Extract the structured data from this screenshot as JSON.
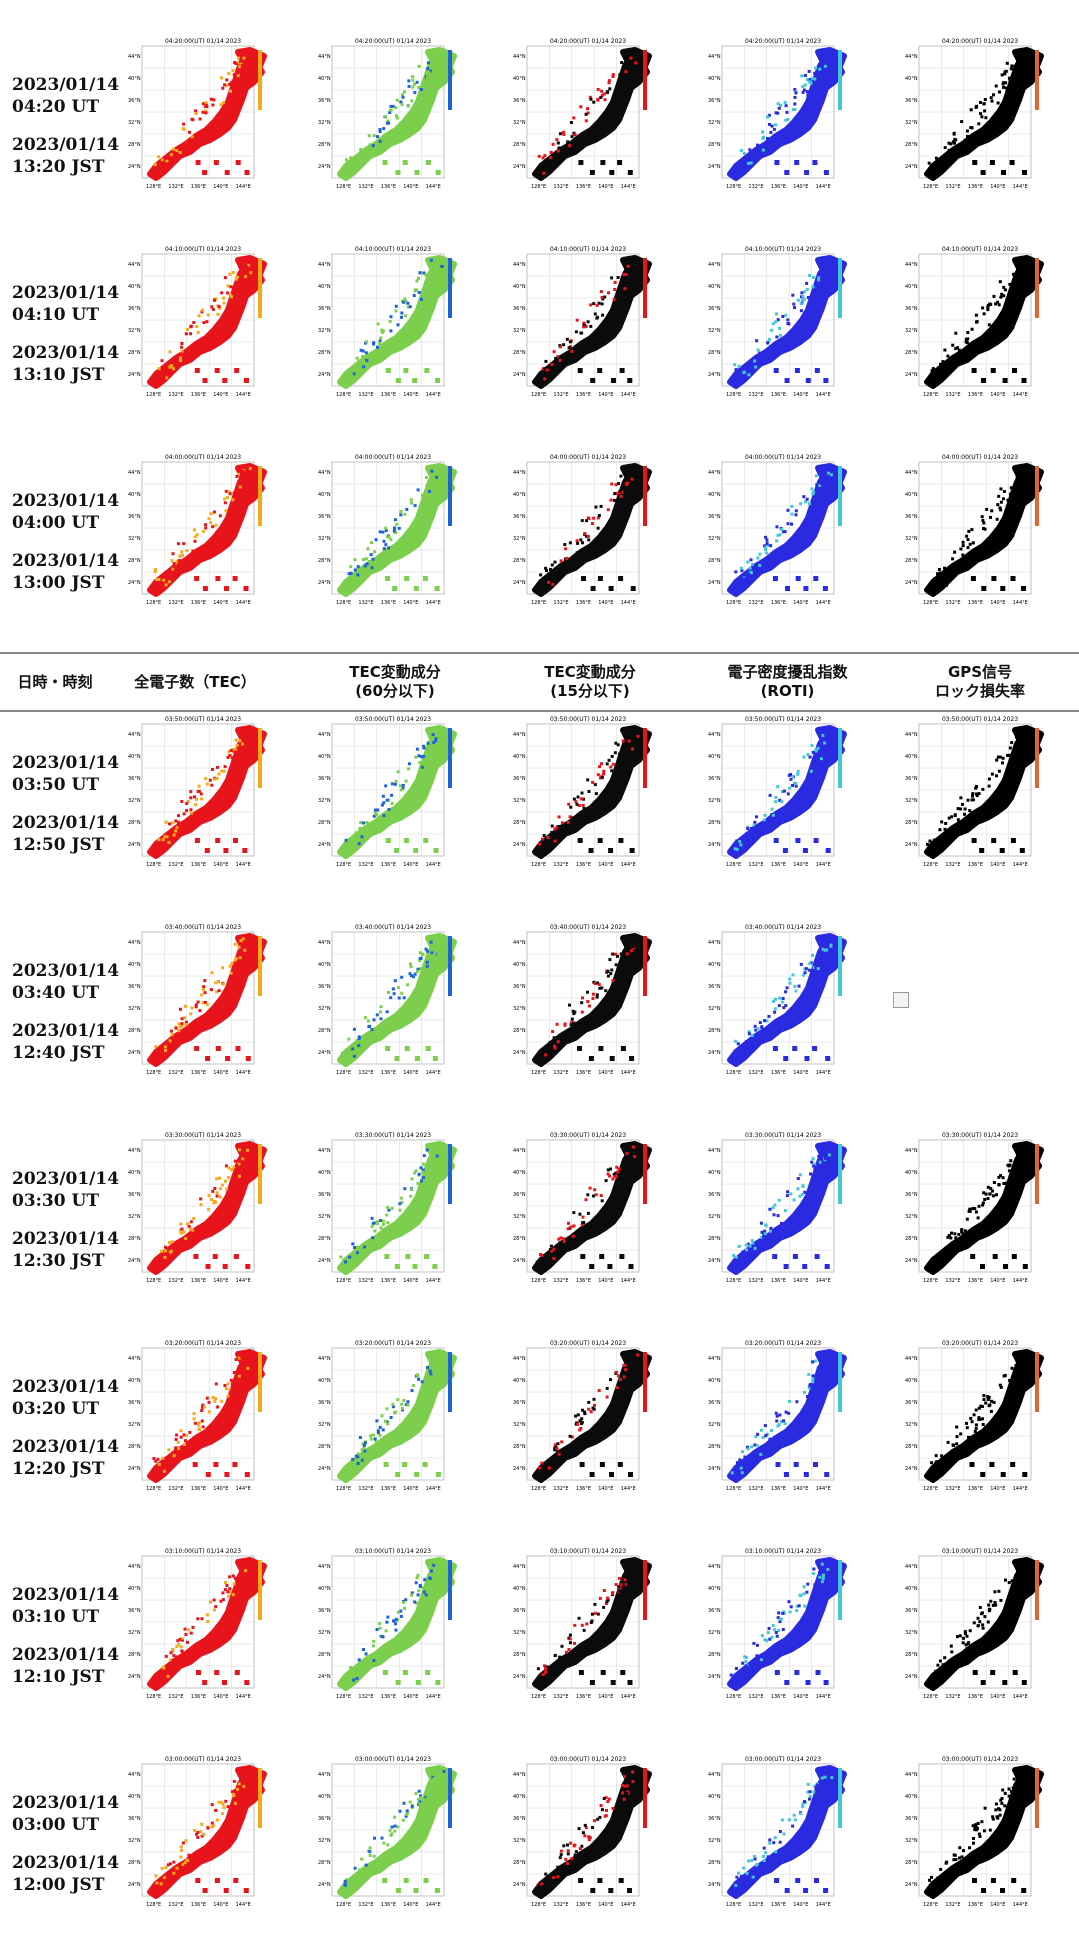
{
  "header": {
    "col_datetime": "日時・時刻",
    "col_tec": "全電子数（TEC）",
    "col_tec60": "TEC変動成分\n(60分以下)",
    "col_tec15": "TEC変動成分\n(15分以下)",
    "col_roti": "電子密度擾乱指数\n(ROTI)",
    "col_lol": "GPS信号\nロック損失率"
  },
  "rows_top": [
    {
      "ut_date": "2023/01/14",
      "ut_time": "04:20 UT",
      "jst_date": "2023/01/14",
      "jst_time": "13:20 JST",
      "map_title": "04:20:00(UT) 01/14 2023"
    },
    {
      "ut_date": "2023/01/14",
      "ut_time": "04:10 UT",
      "jst_date": "2023/01/14",
      "jst_time": "13:10 JST",
      "map_title": "04:10:00(UT) 01/14 2023"
    },
    {
      "ut_date": "2023/01/14",
      "ut_time": "04:00 UT",
      "jst_date": "2023/01/14",
      "jst_time": "13:00 JST",
      "map_title": "04:00:00(UT) 01/14 2023"
    }
  ],
  "rows_bottom": [
    {
      "ut_date": "2023/01/14",
      "ut_time": "03:50 UT",
      "jst_date": "2023/01/14",
      "jst_time": "12:50 JST",
      "map_title": "03:50:00(UT) 01/14 2023"
    },
    {
      "ut_date": "2023/01/14",
      "ut_time": "03:40 UT",
      "jst_date": "2023/01/14",
      "jst_time": "12:40 JST",
      "map_title": "03:40:00(UT) 01/14 2023"
    },
    {
      "ut_date": "2023/01/14",
      "ut_time": "03:30 UT",
      "jst_date": "2023/01/14",
      "jst_time": "12:30 JST",
      "map_title": "03:30:00(UT) 01/14 2023"
    },
    {
      "ut_date": "2023/01/14",
      "ut_time": "03:20 UT",
      "jst_date": "2023/01/14",
      "jst_time": "12:20 JST",
      "map_title": "03:20:00(UT) 01/14 2023"
    },
    {
      "ut_date": "2023/01/14",
      "ut_time": "03:10 UT",
      "jst_date": "2023/01/14",
      "jst_time": "12:10 JST",
      "map_title": "03:10:00(UT) 01/14 2023"
    },
    {
      "ut_date": "2023/01/14",
      "ut_time": "03:00 UT",
      "jst_date": "2023/01/14",
      "jst_time": "12:00 JST",
      "map_title": "03:00:00(UT) 01/14 2023"
    }
  ],
  "map_axes": {
    "lat_labels": [
      "44°N",
      "40°N",
      "36°N",
      "32°N",
      "28°N",
      "24°N"
    ],
    "lon_labels": [
      "128°E",
      "132°E",
      "136°E",
      "140°E",
      "144°E"
    ]
  },
  "map_styles": [
    {
      "type": "tec",
      "primary": "#e8141c",
      "secondary": "#f7a81b"
    },
    {
      "type": "tec60",
      "primary": "#7ccf4c",
      "secondary": "#1e63d6"
    },
    {
      "type": "tec15",
      "primary": "#0b0b0b",
      "secondary": "#e8141c"
    },
    {
      "type": "roti",
      "primary": "#2a2ae0",
      "secondary": "#41c7d8"
    },
    {
      "type": "lol",
      "primary": "#000000",
      "secondary": "#000000"
    }
  ]
}
